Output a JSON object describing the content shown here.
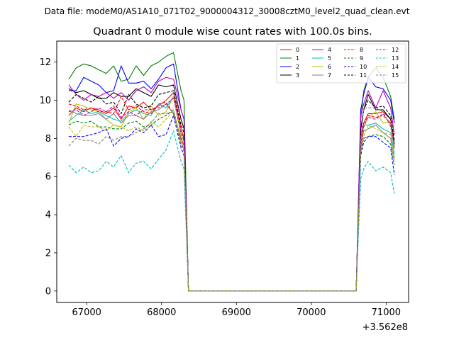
{
  "suptitle": "Data file: modeM0/AS1A10_071T02_9000004312_30008cztM0_level2_quad_clean.evt",
  "chart_data": {
    "type": "line",
    "title": "Quadrant 0 module wise count rates with 100.0s bins.",
    "xlabel": "",
    "ylabel": "",
    "x_offset_label": "+3.562e8",
    "x_offset": 356200000,
    "xlim": [
      66600,
      71300
    ],
    "ylim": [
      -0.6,
      13.1
    ],
    "xticks": [
      67000,
      68000,
      69000,
      70000,
      71000
    ],
    "xtick_labels": [
      "67000",
      "68000",
      "69000",
      "70000",
      "71000"
    ],
    "yticks": [
      0,
      2,
      4,
      6,
      8,
      10,
      12
    ],
    "ytick_labels": [
      "0",
      "2",
      "4",
      "6",
      "8",
      "10",
      "12"
    ],
    "grid": false,
    "legend_position": "top-right",
    "legend_columns": 4,
    "x_first": [
      66760,
      66860,
      66960,
      67060,
      67160,
      67260,
      67360,
      67460,
      67560,
      67660,
      67760,
      67860,
      67960,
      68060,
      68160,
      68260,
      68300,
      68360,
      68400
    ],
    "x_second": [
      70600,
      70660,
      70700,
      70760,
      70860,
      70960,
      71060,
      71110
    ],
    "series": [
      {
        "name": "0",
        "color": "#ff0000",
        "dash": "solid",
        "first": [
          9.2,
          9.6,
          9.4,
          9.6,
          9.5,
          9.3,
          9.6,
          9.0,
          9.7,
          9.6,
          9.9,
          9.5,
          9.7,
          10.0,
          10.4,
          8.5,
          8.0,
          0.0,
          0.0
        ],
        "second": [
          0.0,
          8.0,
          8.8,
          9.3,
          9.3,
          9.4,
          9.0,
          7.5
        ]
      },
      {
        "name": "1",
        "color": "#008000",
        "dash": "solid",
        "first": [
          11.1,
          11.7,
          11.9,
          11.8,
          11.6,
          11.4,
          11.8,
          11.0,
          11.1,
          11.8,
          11.3,
          11.8,
          12.0,
          12.3,
          12.5,
          10.5,
          10.0,
          0.0,
          0.0
        ],
        "second": [
          0.0,
          9.0,
          10.5,
          11.2,
          11.7,
          11.2,
          10.2,
          9.0
        ]
      },
      {
        "name": "2",
        "color": "#0000ff",
        "dash": "solid",
        "first": [
          10.5,
          10.5,
          11.2,
          11.0,
          10.8,
          10.4,
          10.5,
          11.8,
          10.9,
          10.9,
          11.0,
          10.6,
          11.1,
          11.7,
          11.9,
          9.5,
          9.0,
          0.0,
          0.0
        ],
        "second": [
          0.0,
          9.5,
          10.3,
          11.2,
          10.7,
          10.6,
          10.0,
          8.8
        ]
      },
      {
        "name": "3",
        "color": "#000000",
        "dash": "solid",
        "first": [
          10.6,
          10.4,
          10.5,
          10.3,
          10.1,
          10.1,
          10.4,
          10.2,
          10.2,
          10.6,
          10.4,
          10.2,
          10.8,
          10.7,
          10.8,
          9.0,
          8.5,
          0.0,
          0.0
        ],
        "second": [
          0.0,
          8.5,
          9.5,
          10.3,
          9.5,
          9.5,
          9.0,
          7.7
        ]
      },
      {
        "name": "4",
        "color": "#bf00bf",
        "dash": "solid",
        "first": [
          10.8,
          10.3,
          10.0,
          10.3,
          10.2,
          10.4,
          10.1,
          10.4,
          10.0,
          10.5,
          10.7,
          10.4,
          11.0,
          11.2,
          11.1,
          9.5,
          9.0,
          0.0,
          0.0
        ],
        "second": [
          0.0,
          9.2,
          9.8,
          10.5,
          9.6,
          10.5,
          9.6,
          8.2
        ]
      },
      {
        "name": "5",
        "color": "#00bfbf",
        "dash": "solid",
        "first": [
          8.9,
          9.2,
          9.5,
          9.3,
          9.4,
          9.2,
          9.0,
          8.9,
          9.3,
          9.5,
          9.3,
          9.2,
          9.8,
          9.6,
          10.2,
          8.2,
          7.8,
          0.0,
          0.0
        ],
        "second": [
          0.0,
          7.8,
          8.7,
          8.7,
          8.8,
          8.5,
          8.3,
          7.2
        ]
      },
      {
        "name": "6",
        "color": "#bfbf00",
        "dash": "solid",
        "first": [
          8.8,
          9.8,
          9.7,
          9.5,
          9.4,
          9.0,
          8.7,
          8.6,
          9.4,
          9.6,
          9.0,
          9.7,
          9.2,
          9.4,
          10.2,
          8.2,
          7.8,
          0.0,
          0.0
        ],
        "second": [
          0.0,
          7.9,
          8.6,
          9.1,
          9.4,
          8.8,
          8.9,
          7.5
        ]
      },
      {
        "name": "7",
        "color": "#808080",
        "dash": "solid",
        "first": [
          9.5,
          9.3,
          9.2,
          9.2,
          9.3,
          9.0,
          9.3,
          8.8,
          9.2,
          9.2,
          9.0,
          9.4,
          9.5,
          9.8,
          9.3,
          8.0,
          7.6,
          0.0,
          0.0
        ],
        "second": [
          0.0,
          7.5,
          8.4,
          8.5,
          8.7,
          8.3,
          8.0,
          6.9
        ]
      },
      {
        "name": "8",
        "color": "#ff0000",
        "dash": "dashed",
        "first": [
          9.8,
          9.7,
          9.5,
          9.6,
          9.4,
          9.4,
          9.3,
          10.2,
          9.5,
          9.7,
          9.4,
          9.3,
          9.8,
          9.9,
          9.3,
          8.0,
          7.6,
          0.0,
          0.0
        ],
        "second": [
          0.0,
          7.6,
          8.6,
          9.2,
          9.1,
          9.2,
          8.8,
          7.5
        ]
      },
      {
        "name": "9",
        "color": "#008000",
        "dash": "dashed",
        "first": [
          8.7,
          8.9,
          8.8,
          8.9,
          8.6,
          8.6,
          8.5,
          8.5,
          8.8,
          8.9,
          8.6,
          8.7,
          9.0,
          9.2,
          9.5,
          7.8,
          7.4,
          0.0,
          0.0
        ],
        "second": [
          0.0,
          7.3,
          8.0,
          8.1,
          8.2,
          8.1,
          7.7,
          6.6
        ]
      },
      {
        "name": "10",
        "color": "#0000ff",
        "dash": "dashed",
        "first": [
          8.1,
          8.1,
          8.1,
          8.2,
          8.3,
          8.5,
          7.6,
          8.0,
          8.1,
          8.5,
          8.3,
          8.7,
          8.1,
          8.2,
          9.2,
          7.5,
          7.1,
          0.0,
          0.0
        ],
        "second": [
          0.0,
          7.1,
          7.8,
          8.1,
          8.1,
          7.8,
          7.5,
          6.1
        ]
      },
      {
        "name": "11",
        "color": "#000000",
        "dash": "dashed",
        "first": [
          9.9,
          10.3,
          10.1,
          9.9,
          10.2,
          9.8,
          9.9,
          9.3,
          10.3,
          9.8,
          9.6,
          9.7,
          10.3,
          10.4,
          10.5,
          8.7,
          8.3,
          0.0,
          0.0
        ],
        "second": [
          0.0,
          8.4,
          9.5,
          10.0,
          9.6,
          9.7,
          9.2,
          7.9
        ]
      },
      {
        "name": "12",
        "color": "#bf00bf",
        "dash": "dashed",
        "first": [
          9.4,
          9.5,
          9.2,
          9.4,
          9.6,
          9.4,
          9.7,
          9.1,
          9.4,
          9.2,
          9.5,
          9.5,
          9.6,
          9.8,
          10.1,
          8.3,
          7.9,
          0.0,
          0.0
        ],
        "second": [
          0.0,
          8.0,
          8.8,
          9.1,
          9.0,
          9.3,
          8.7,
          7.6
        ]
      },
      {
        "name": "13",
        "color": "#00bfbf",
        "dash": "dashed",
        "first": [
          6.6,
          6.2,
          6.5,
          6.2,
          6.3,
          6.8,
          6.5,
          7.1,
          6.2,
          6.7,
          6.8,
          6.4,
          6.9,
          7.4,
          8.4,
          6.8,
          6.4,
          0.0,
          0.0
        ],
        "second": [
          0.0,
          5.9,
          6.4,
          6.8,
          6.3,
          6.5,
          6.2,
          5.1
        ]
      },
      {
        "name": "14",
        "color": "#bfbf00",
        "dash": "dashed",
        "first": [
          8.6,
          8.1,
          8.7,
          8.6,
          8.6,
          8.4,
          8.7,
          8.6,
          8.4,
          8.6,
          8.4,
          8.9,
          8.6,
          9.0,
          9.5,
          7.8,
          7.4,
          0.0,
          0.0
        ],
        "second": [
          0.0,
          7.3,
          8.1,
          8.7,
          8.5,
          8.3,
          8.2,
          7.0
        ]
      },
      {
        "name": "15",
        "color": "#808080",
        "dash": "dashed",
        "first": [
          7.6,
          8.0,
          7.9,
          7.9,
          7.7,
          8.1,
          7.9,
          8.1,
          8.1,
          8.3,
          8.5,
          8.8,
          9.3,
          9.3,
          9.4,
          7.7,
          7.3,
          0.0,
          0.0
        ],
        "second": [
          0.0,
          7.9,
          9.6,
          9.6,
          9.6,
          9.4,
          8.6,
          7.5
        ]
      }
    ]
  }
}
